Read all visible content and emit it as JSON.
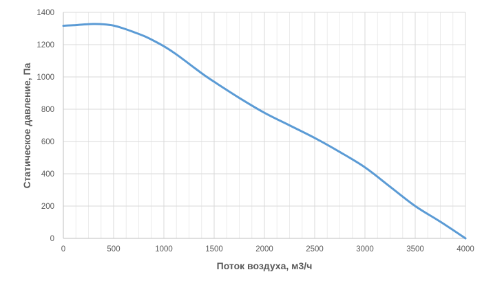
{
  "chart_data": {
    "type": "line",
    "title": "",
    "xlabel": "Поток воздуха, м3/ч",
    "ylabel": "Статическое давление, Па",
    "xlim": [
      0,
      4000
    ],
    "ylim": [
      0,
      1400
    ],
    "x_ticks": [
      0,
      500,
      1000,
      1500,
      2000,
      2500,
      3000,
      3500,
      4000
    ],
    "y_ticks": [
      0,
      200,
      400,
      600,
      800,
      1000,
      1200,
      1400
    ],
    "x_tick_labels": [
      "0",
      "500",
      "1000",
      "1500",
      "2000",
      "2500",
      "3000",
      "3500",
      "4000"
    ],
    "y_tick_labels": [
      "0",
      "200",
      "400",
      "600",
      "800",
      "1000",
      "1200",
      "1400"
    ],
    "grid": true,
    "legend": "none",
    "series": [
      {
        "color": "#5b9bd5",
        "x": [
          0,
          100,
          200,
          300,
          400,
          500,
          600,
          700,
          800,
          900,
          1000,
          1100,
          1200,
          1300,
          1400,
          1500,
          1750,
          2000,
          2250,
          2500,
          2750,
          3000,
          3250,
          3500,
          3750,
          4000
        ],
        "y": [
          1317,
          1320,
          1325,
          1328,
          1326,
          1318,
          1300,
          1278,
          1254,
          1224,
          1190,
          1150,
          1105,
          1058,
          1012,
          970,
          870,
          778,
          700,
          622,
          535,
          440,
          320,
          200,
          103,
          0
        ]
      }
    ]
  }
}
